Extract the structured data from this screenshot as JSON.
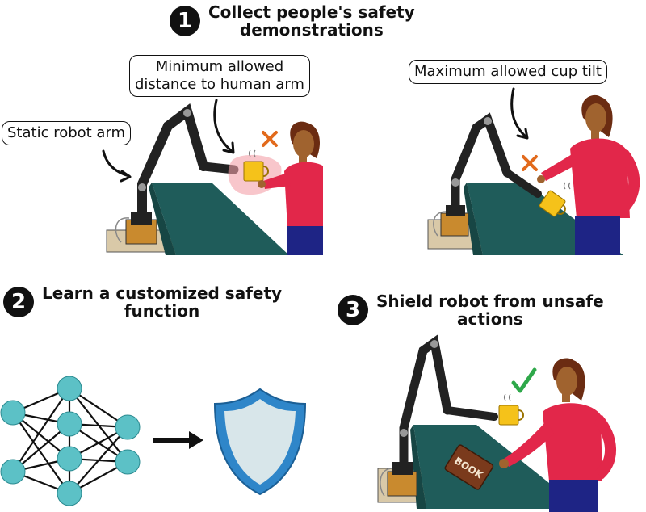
{
  "step1": {
    "number": "1",
    "title": "Collect people's safety\ndemonstrations"
  },
  "step2": {
    "number": "2",
    "title": "Learn a customized safety\nfunction"
  },
  "step3": {
    "number": "3",
    "title": "Shield robot from unsafe\nactions"
  },
  "callouts": {
    "static_arm": "Static robot arm",
    "min_distance": "Minimum allowed\ndistance to human arm",
    "max_tilt": "Maximum allowed cup tilt"
  },
  "book_label": "BOOK",
  "icons": {
    "unsafe": "x-mark-icon",
    "safe": "check-mark-icon",
    "shield": "shield-icon",
    "network": "neural-network-icon",
    "arrow": "arrow-right-icon"
  },
  "colors": {
    "table": "#1f5c5a",
    "shirt": "#e2274a",
    "pants": "#1e2485",
    "skin": "#a0632f",
    "hair": "#6b2c12",
    "cup": "#f5c21a",
    "unsafe": "#e26a1c",
    "safe": "#2ea84a",
    "node": "#5cc1c6",
    "shield": "#2f86c9",
    "zone": "#f3a0a8"
  }
}
